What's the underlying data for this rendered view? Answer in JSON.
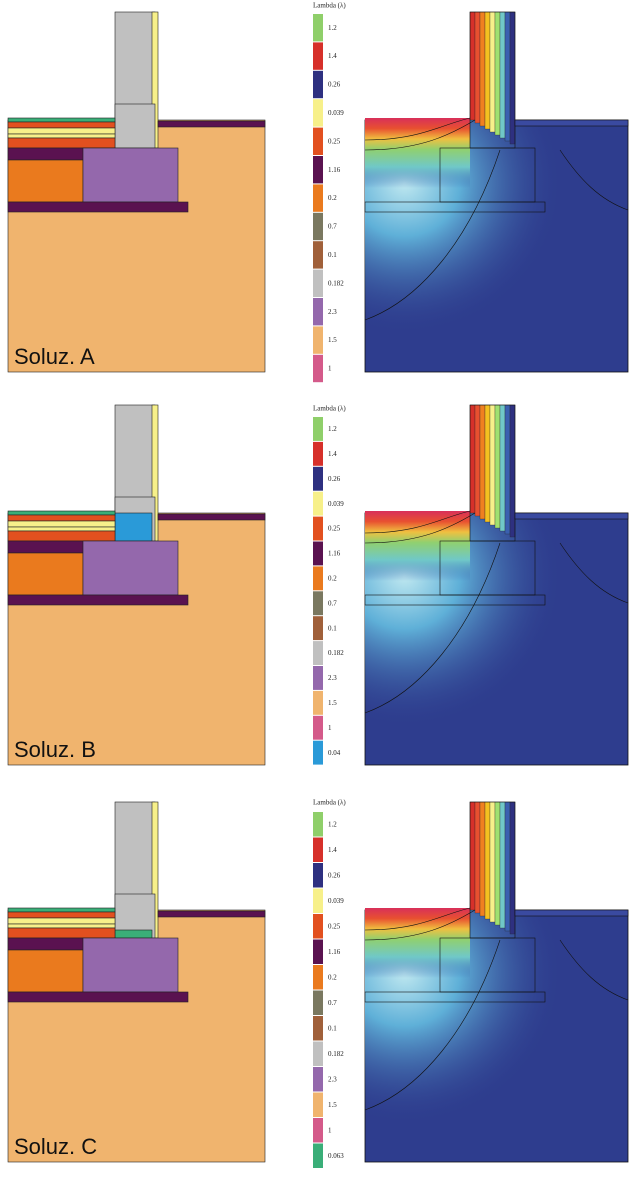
{
  "panels": [
    {
      "label": "Soluz. A",
      "legend_title": "Lambda (λ)",
      "legend": [
        {
          "label": "1.2",
          "color": "#8fcf6a"
        },
        {
          "label": "1.4",
          "color": "#d6302a"
        },
        {
          "label": "0.26",
          "color": "#2e3080"
        },
        {
          "label": "0.039",
          "color": "#f7f08a"
        },
        {
          "label": "0.25",
          "color": "#e2501f"
        },
        {
          "label": "1.16",
          "color": "#5a1250"
        },
        {
          "label": "0.2",
          "color": "#ea7a1e"
        },
        {
          "label": "0.7",
          "color": "#7a7860"
        },
        {
          "label": "0.1",
          "color": "#a0603a"
        },
        {
          "label": "0.182",
          "color": "#c0c0c0"
        },
        {
          "label": "2.3",
          "color": "#9468ac"
        },
        {
          "label": "1.5",
          "color": "#f0b46e"
        },
        {
          "label": "1",
          "color": "#d45a8a"
        }
      ]
    },
    {
      "label": "Soluz. B",
      "legend_title": "Lambda (λ)",
      "legend": [
        {
          "label": "1.2",
          "color": "#8fcf6a"
        },
        {
          "label": "1.4",
          "color": "#d6302a"
        },
        {
          "label": "0.26",
          "color": "#2e3080"
        },
        {
          "label": "0.039",
          "color": "#f7f08a"
        },
        {
          "label": "0.25",
          "color": "#e2501f"
        },
        {
          "label": "1.16",
          "color": "#5a1250"
        },
        {
          "label": "0.2",
          "color": "#ea7a1e"
        },
        {
          "label": "0.7",
          "color": "#7a7860"
        },
        {
          "label": "0.1",
          "color": "#a0603a"
        },
        {
          "label": "0.182",
          "color": "#c0c0c0"
        },
        {
          "label": "2.3",
          "color": "#9468ac"
        },
        {
          "label": "1.5",
          "color": "#f0b46e"
        },
        {
          "label": "1",
          "color": "#d45a8a"
        },
        {
          "label": "0.04",
          "color": "#2a9ad8"
        }
      ]
    },
    {
      "label": "Soluz. C",
      "legend_title": "Lambda (λ)",
      "legend": [
        {
          "label": "1.2",
          "color": "#8fcf6a"
        },
        {
          "label": "1.4",
          "color": "#d6302a"
        },
        {
          "label": "0.26",
          "color": "#2e3080"
        },
        {
          "label": "0.039",
          "color": "#f7f08a"
        },
        {
          "label": "0.25",
          "color": "#e2501f"
        },
        {
          "label": "1.16",
          "color": "#5a1250"
        },
        {
          "label": "0.2",
          "color": "#ea7a1e"
        },
        {
          "label": "0.7",
          "color": "#7a7860"
        },
        {
          "label": "0.1",
          "color": "#a0603a"
        },
        {
          "label": "0.182",
          "color": "#c0c0c0"
        },
        {
          "label": "2.3",
          "color": "#9468ac"
        },
        {
          "label": "1.5",
          "color": "#f0b46e"
        },
        {
          "label": "1",
          "color": "#d45a8a"
        },
        {
          "label": "0.063",
          "color": "#3aae78"
        }
      ]
    }
  ]
}
